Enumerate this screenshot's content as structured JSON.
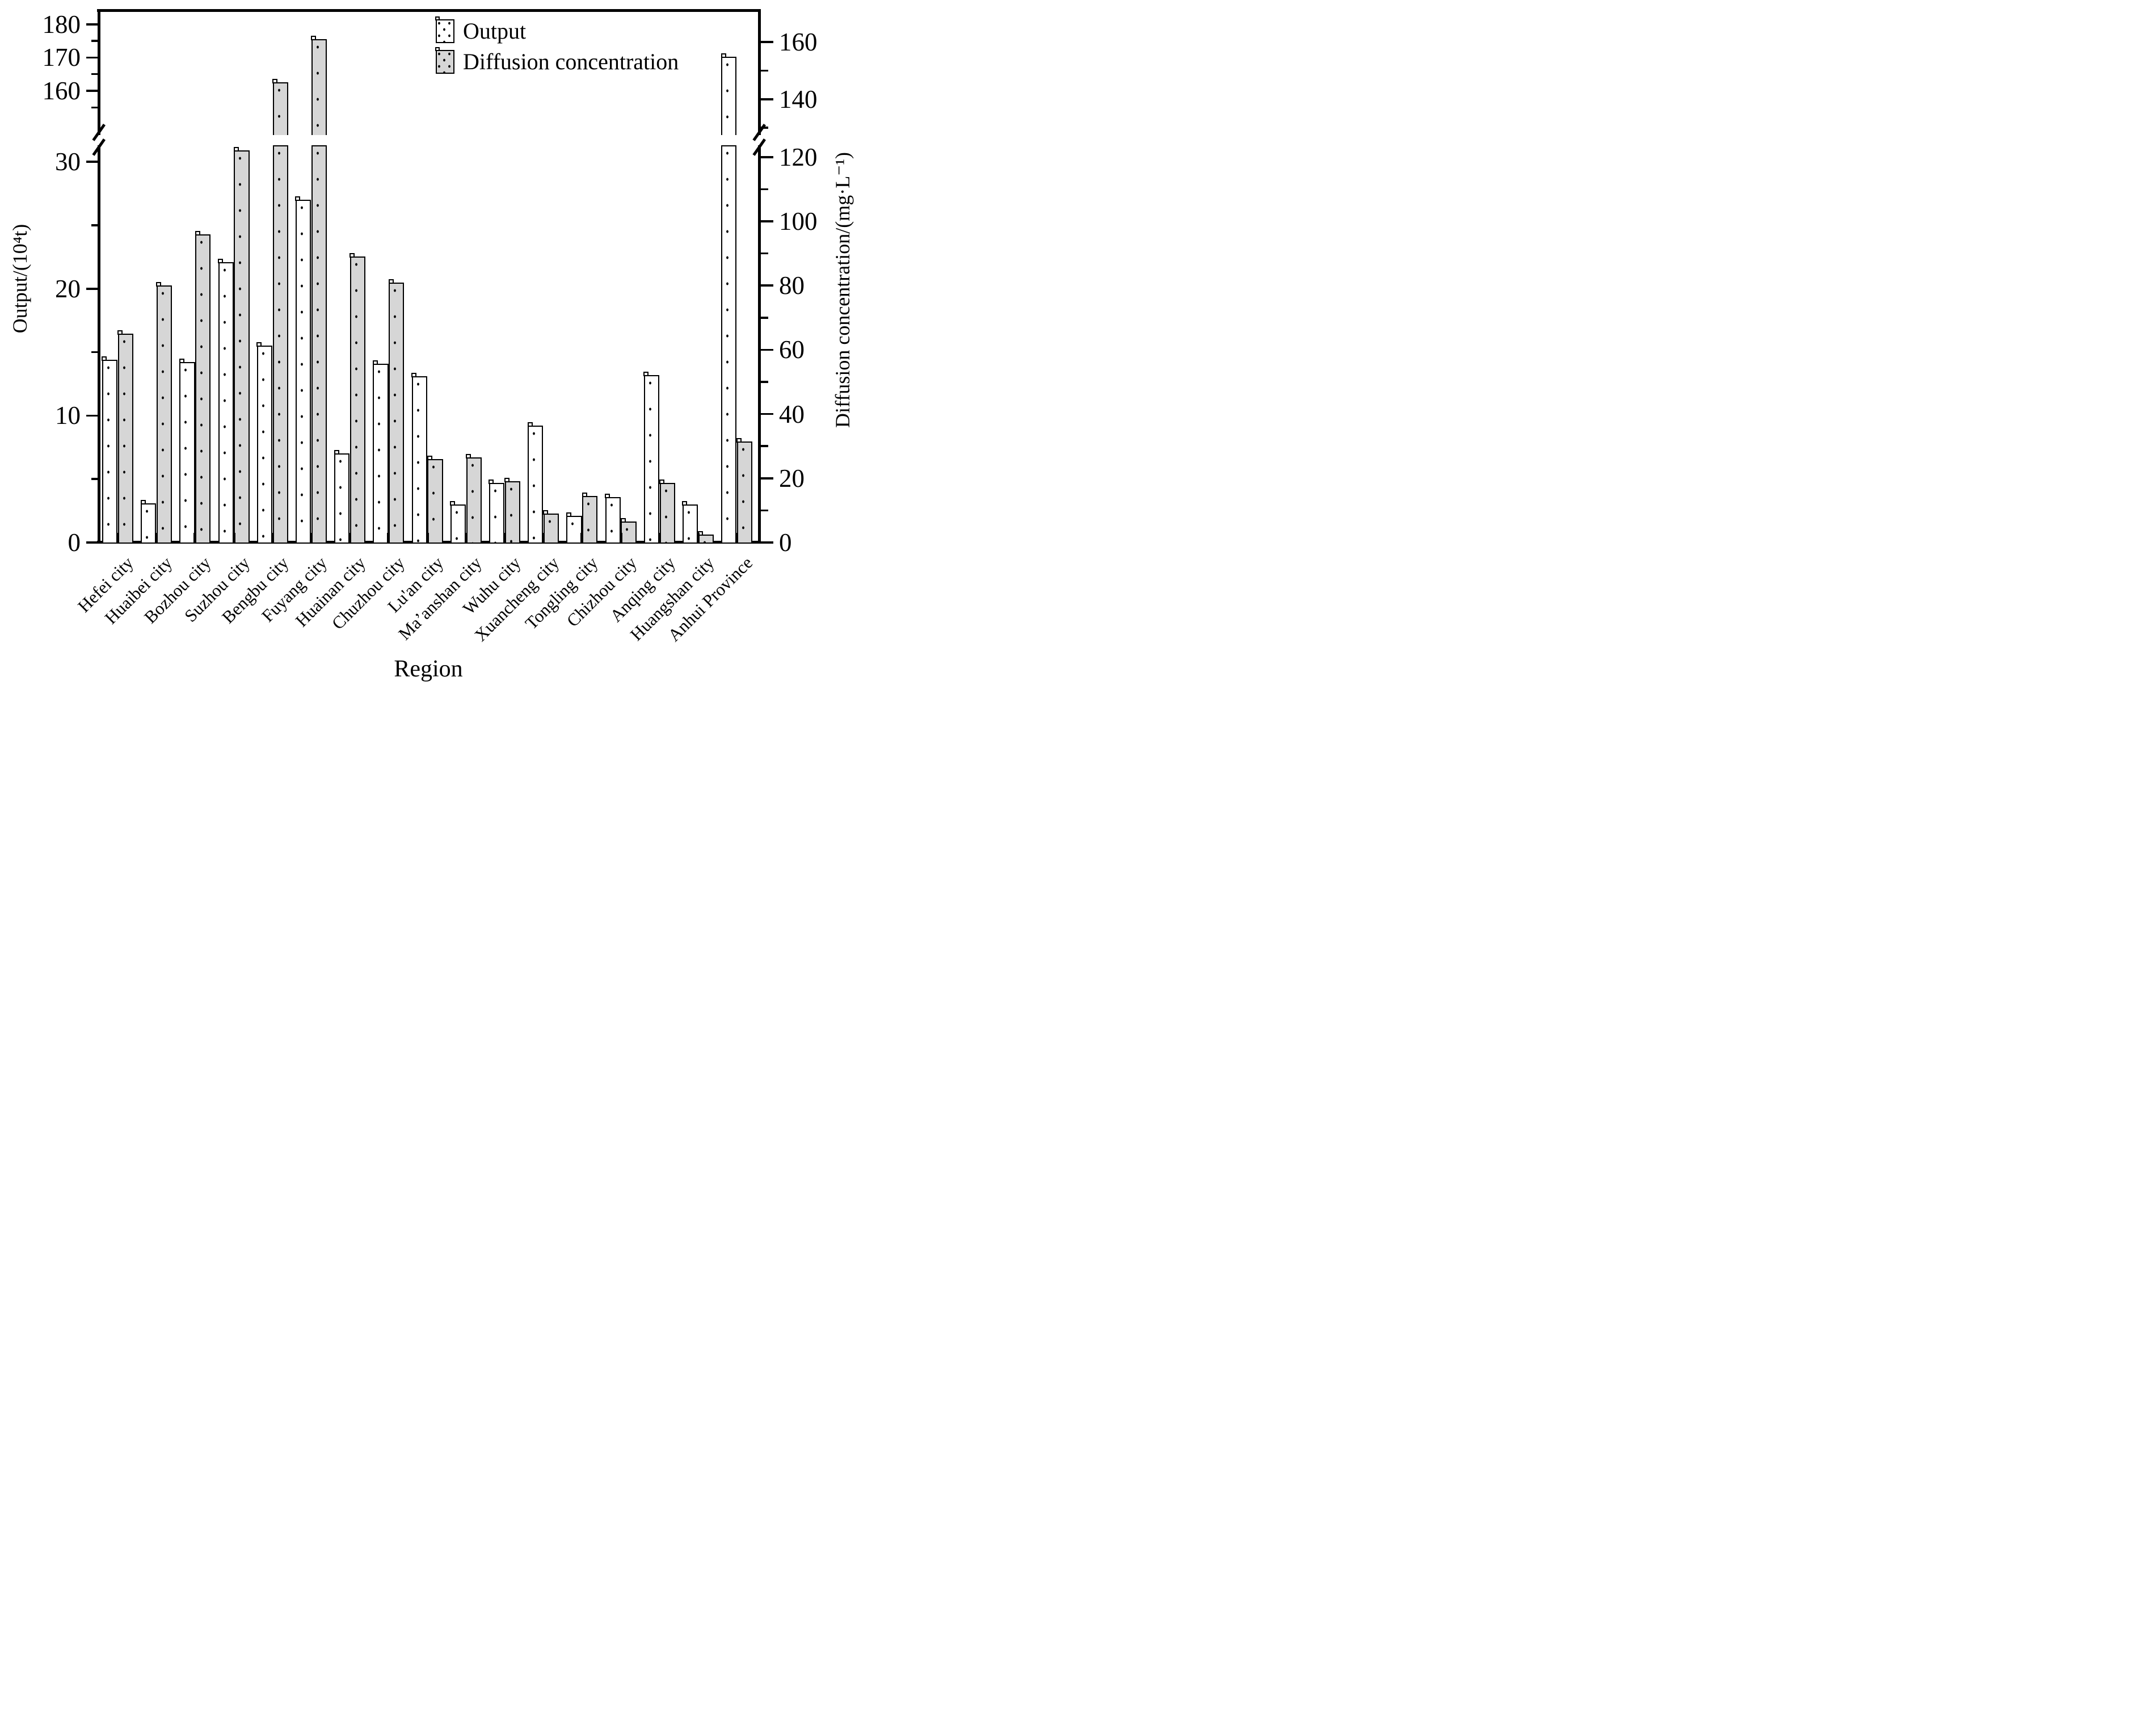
{
  "figure": {
    "x_title": "Region",
    "left_axis_title": "Output/(10⁴t)",
    "right_axis_title": "Diffusion concentration/(mg·L⁻¹)",
    "colors": {
      "output_fill": "#ffffff",
      "diffusion_fill": "#d6d6d6",
      "axis": "#000000",
      "dot": "#000000"
    }
  },
  "legend": {
    "items": [
      {
        "label": "Output",
        "swatch": "white-dotted"
      },
      {
        "label": "Diffusion concentration",
        "swatch": "gray-dotted"
      }
    ]
  },
  "chart_data": {
    "type": "bar",
    "title": "",
    "xlabel": "Region",
    "ylabel_left": "Output/(10⁴t)",
    "ylabel_right": "Diffusion concentration/(mg·L⁻¹)",
    "axis_break": {
      "present": true,
      "left_bottom_range": [
        0,
        31.4
      ],
      "left_top_range": [
        146,
        184.6
      ],
      "right_range": [
        0,
        166
      ]
    },
    "grid": false,
    "legend_position": "top-center-right",
    "categories": [
      "Hefei city",
      "Huaibei city",
      "Bozhou city",
      "Suzhou city",
      "Bengbu city",
      "Fuyang city",
      "Huainan city",
      "Chuzhou city",
      "Lu'an city",
      "Ma’anshan city",
      "Wuhu city",
      "Xuancheng city",
      "Tongling city",
      "Chizhou city",
      "Anqing city",
      "Huangshan city",
      "Anhui Province"
    ],
    "series": [
      {
        "name": "Output",
        "axis": "left",
        "unit": "10^4 t",
        "values": [
          14.4,
          3.1,
          14.2,
          22.1,
          15.5,
          27.0,
          7.0,
          14.1,
          13.1,
          3.0,
          4.7,
          9.2,
          2.1,
          3.6,
          13.2,
          3.0,
          170.3
        ]
      },
      {
        "name": "Diffusion concentration",
        "axis": "right",
        "unit": "mg/L",
        "values": [
          65,
          80,
          96,
          122,
          146,
          161,
          89,
          81,
          26,
          26.5,
          19,
          9,
          14.5,
          6.5,
          18.5,
          2.5,
          31.5
        ]
      }
    ],
    "left_ticks": {
      "bottom_major": [
        0,
        10,
        20,
        30
      ],
      "bottom_minor": [
        5,
        15,
        25
      ],
      "top_major": [
        160,
        170,
        180
      ],
      "top_minor": [
        155,
        165,
        175
      ]
    },
    "right_ticks": {
      "bottom_major": [
        0,
        20,
        40,
        60,
        80,
        100,
        120
      ],
      "bottom_minor": [
        10,
        30,
        50,
        70,
        90,
        110
      ],
      "top_major": [
        140,
        160
      ],
      "top_minor": [
        130,
        150
      ]
    }
  }
}
